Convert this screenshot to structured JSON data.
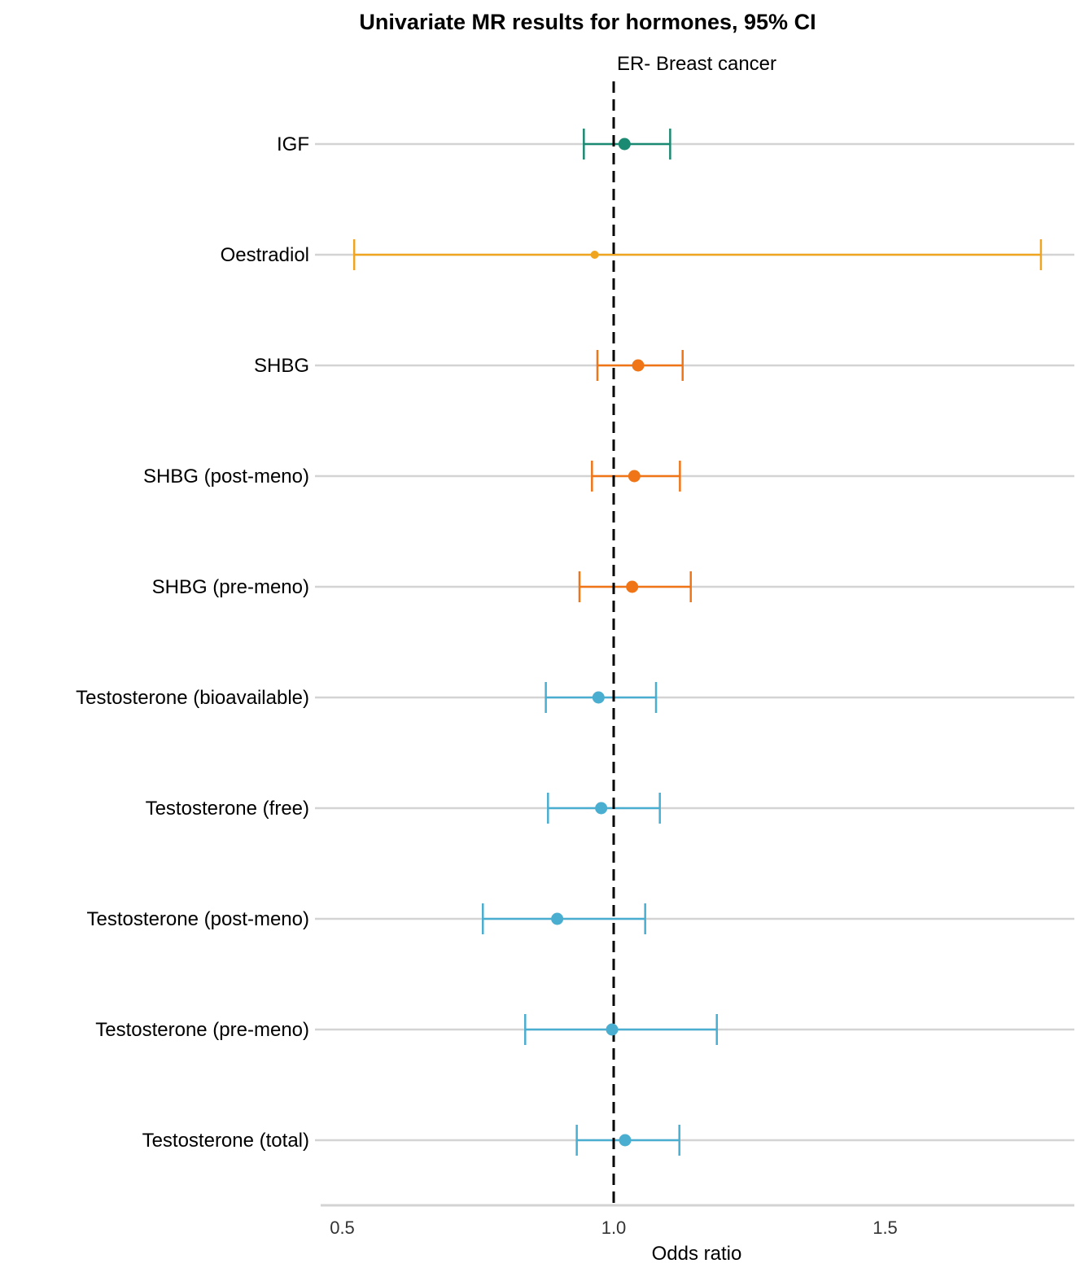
{
  "chart_data": {
    "type": "forest",
    "title": "Univariate MR results for hormones, 95% CI",
    "facet_label": "ER- Breast cancer",
    "xlabel": "Odds ratio",
    "ylabel": "",
    "xlim": [
      0.46,
      1.84
    ],
    "x_ticks": [
      "0.5",
      "1.0",
      "1.5"
    ],
    "x_tick_values": [
      0.5,
      1.0,
      1.5
    ],
    "reference_line": 1.0,
    "grid": "horizontal",
    "legend": "none",
    "colors": {
      "igf": "#1b8a72",
      "oestradiol": "#f0a520",
      "shbg": "#ef7516",
      "testosterone": "#4aaed0",
      "gridline": "#d3d3d3",
      "reference": "#000000"
    },
    "rows": [
      {
        "label": "IGF",
        "or": 1.02,
        "lower": 0.945,
        "upper": 1.104,
        "color": "#1b8a72",
        "point": "large"
      },
      {
        "label": "Oestradiol",
        "or": 0.965,
        "lower": 0.522,
        "upper": 1.787,
        "color": "#f0a520",
        "point": "small"
      },
      {
        "label": "SHBG",
        "or": 1.045,
        "lower": 0.97,
        "upper": 1.127,
        "color": "#ef7516",
        "point": "large"
      },
      {
        "label": "SHBG (post-meno)",
        "or": 1.038,
        "lower": 0.96,
        "upper": 1.122,
        "color": "#ef7516",
        "point": "large"
      },
      {
        "label": "SHBG (pre-meno)",
        "or": 1.034,
        "lower": 0.937,
        "upper": 1.142,
        "color": "#ef7516",
        "point": "large"
      },
      {
        "label": "Testosterone (bioavailable)",
        "or": 0.972,
        "lower": 0.875,
        "upper": 1.078,
        "color": "#4aaed0",
        "point": "large"
      },
      {
        "label": "Testosterone (free)",
        "or": 0.977,
        "lower": 0.879,
        "upper": 1.085,
        "color": "#4aaed0",
        "point": "large"
      },
      {
        "label": "Testosterone (post-meno)",
        "or": 0.896,
        "lower": 0.759,
        "upper": 1.058,
        "color": "#4aaed0",
        "point": "large"
      },
      {
        "label": "Testosterone (pre-meno)",
        "or": 0.997,
        "lower": 0.837,
        "upper": 1.19,
        "color": "#4aaed0",
        "point": "large"
      },
      {
        "label": "Testosterone (total)",
        "or": 1.021,
        "lower": 0.932,
        "upper": 1.121,
        "color": "#4aaed0",
        "point": "large"
      }
    ]
  }
}
